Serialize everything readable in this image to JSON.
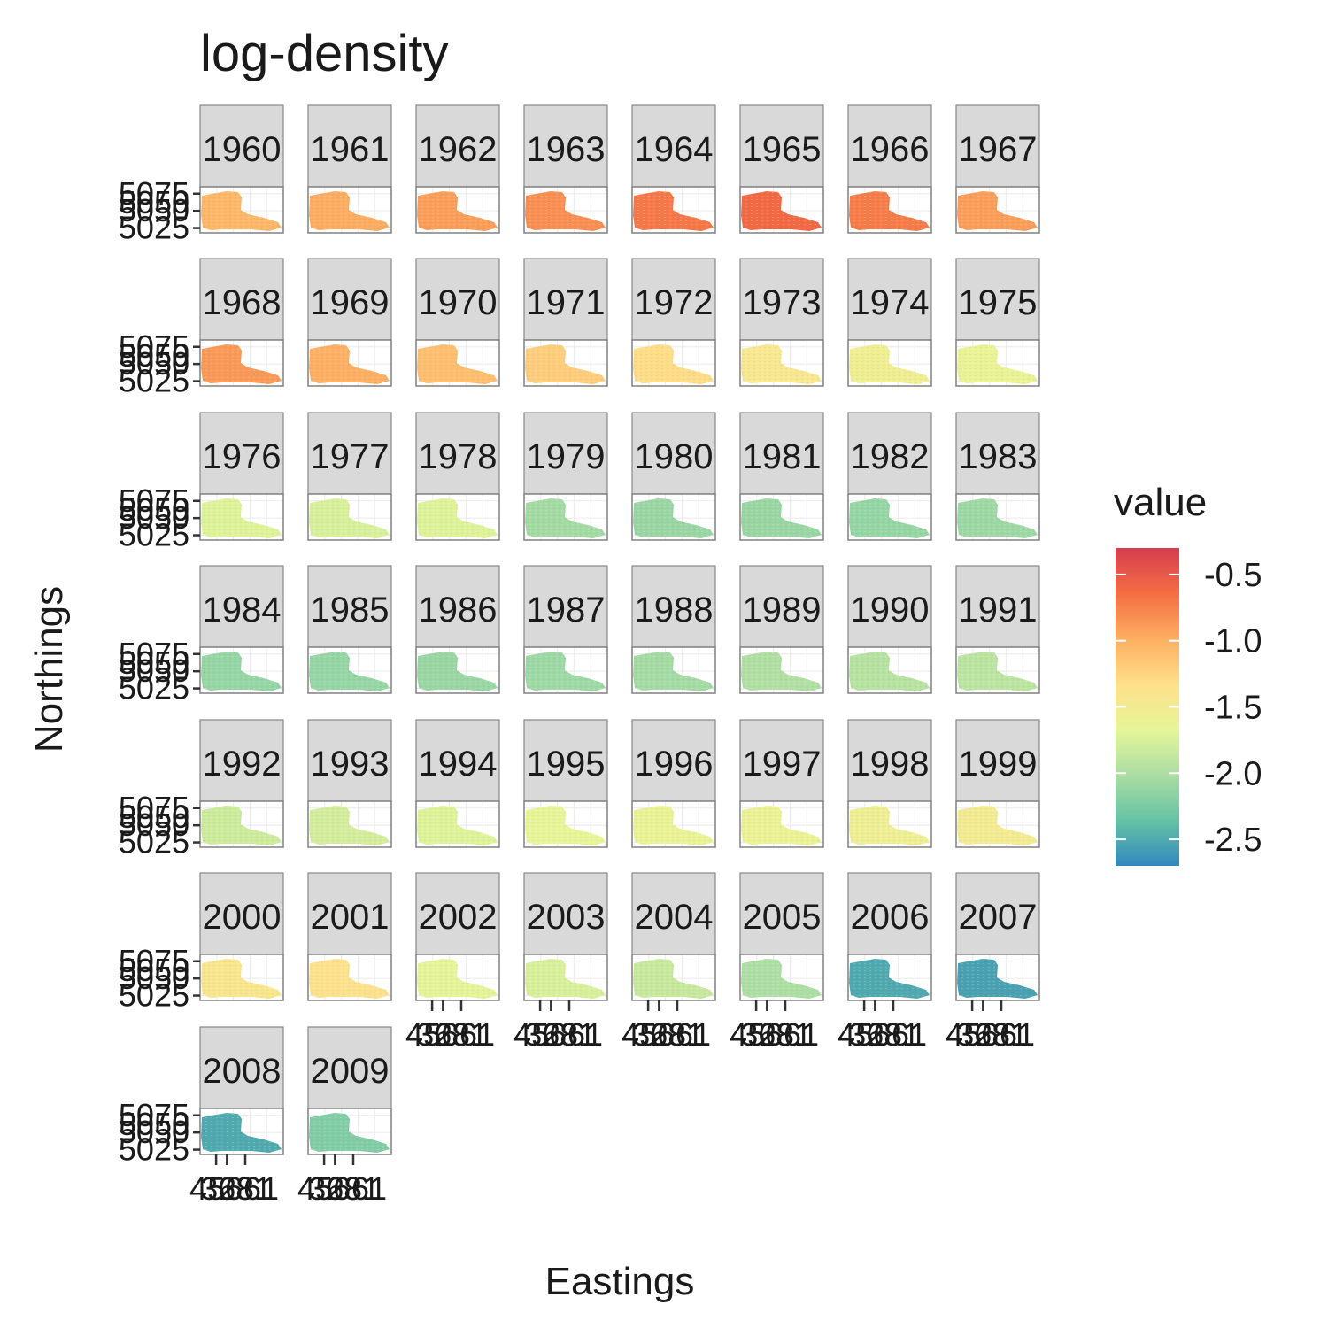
{
  "chart_data": {
    "type": "heatmap",
    "title": "log-density",
    "xlabel": "Eastings",
    "ylabel": "Northings",
    "facet_years": [
      1960,
      1961,
      1962,
      1963,
      1964,
      1965,
      1966,
      1967,
      1968,
      1969,
      1970,
      1971,
      1972,
      1973,
      1974,
      1975,
      1976,
      1977,
      1978,
      1979,
      1980,
      1981,
      1982,
      1983,
      1984,
      1985,
      1986,
      1987,
      1988,
      1989,
      1990,
      1991,
      1992,
      1993,
      1994,
      1995,
      1996,
      1997,
      1998,
      1999,
      2000,
      2001,
      2002,
      2003,
      2004,
      2005,
      2006,
      2007,
      2008,
      2009
    ],
    "facet_labels": [
      "1960",
      "1961",
      "1962",
      "1963",
      "1964",
      "1965",
      "1966",
      "1967",
      "1968",
      "1969",
      "1970",
      "1971",
      "1972",
      "1973",
      "1974",
      "1975",
      "1976",
      "1977",
      "1978",
      "1979",
      "1980",
      "1981",
      "1982",
      "1983",
      "1984",
      "1985",
      "1986",
      "1987",
      "1988",
      "1989",
      "1990",
      "1991",
      "1992",
      "1993",
      "1994",
      "1995",
      "1996",
      "1997",
      "1998",
      "1999",
      "2000",
      "2001",
      "2002",
      "2003",
      "2004",
      "2005",
      "2006",
      "2007",
      "2008",
      "2009"
    ],
    "facet_values": [
      -1.05,
      -0.98,
      -0.9,
      -0.82,
      -0.7,
      -0.62,
      -0.72,
      -0.9,
      -0.88,
      -1.0,
      -1.1,
      -1.2,
      -1.3,
      -1.45,
      -1.55,
      -1.62,
      -1.72,
      -1.75,
      -1.72,
      -2.05,
      -2.1,
      -2.1,
      -2.12,
      -2.08,
      -2.12,
      -2.12,
      -2.1,
      -2.08,
      -2.05,
      -1.98,
      -1.95,
      -1.92,
      -1.82,
      -1.78,
      -1.72,
      -1.66,
      -1.62,
      -1.6,
      -1.56,
      -1.5,
      -1.42,
      -1.35,
      -1.68,
      -1.75,
      -1.85,
      -2.0,
      -2.5,
      -2.55,
      -2.5,
      -2.22
    ],
    "ncol": 8,
    "y_ticks": [
      "5025",
      "5050",
      "5075"
    ],
    "y_tick_overprint": "5050",
    "y_range": [
      5018,
      5085
    ],
    "x_ticks": [
      "456",
      "368",
      "281"
    ],
    "x_tick_overprint": "61",
    "x_ticks_rows": [
      5,
      6
    ],
    "legend": {
      "title": "value",
      "labels": [
        "-0.5",
        "-1.0",
        "-1.5",
        "-2.0",
        "-2.5"
      ],
      "breaks": [
        -0.5,
        -1.0,
        -1.5,
        -2.0,
        -2.5
      ],
      "range": [
        -2.7,
        -0.3
      ],
      "palette": [
        "#3288bd",
        "#66c2a5",
        "#abdda4",
        "#e6f598",
        "#fee08b",
        "#fdae61",
        "#f46d43",
        "#d53e4f"
      ],
      "placement": "right"
    },
    "grid": true
  }
}
